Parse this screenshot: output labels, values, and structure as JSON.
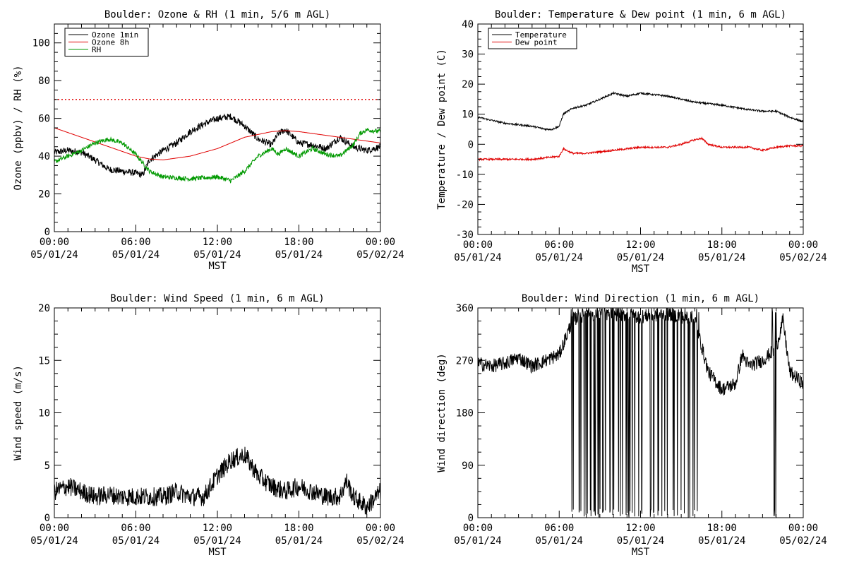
{
  "chart_data": [
    {
      "type": "line",
      "title": "Boulder: Ozone & RH (1 min, 5/6 m AGL)",
      "xlabel": "MST",
      "ylabel": "Ozone (ppbv) / RH (%)",
      "ylim": [
        0,
        110
      ],
      "yticks": [
        0,
        20,
        40,
        60,
        80,
        100
      ],
      "x_range_hours": [
        0,
        24
      ],
      "xticks": [
        {
          "hour": 0,
          "time": "00:00",
          "date": "05/01/24"
        },
        {
          "hour": 6,
          "time": "06:00",
          "date": "05/01/24"
        },
        {
          "hour": 12,
          "time": "12:00",
          "date": "05/01/24"
        },
        {
          "hour": 18,
          "time": "18:00",
          "date": "05/01/24"
        },
        {
          "hour": 24,
          "time": "00:00",
          "date": "05/02/24"
        }
      ],
      "grid": false,
      "legend_position": "top-left",
      "reference_lines": [
        {
          "y": 70,
          "color": "#e00000",
          "style": "dotted"
        }
      ],
      "series": [
        {
          "name": "Ozone 1min",
          "color": "#000000",
          "noise": 1.8,
          "x": [
            0,
            1,
            2,
            3,
            4,
            5,
            6,
            6.5,
            7,
            8,
            9,
            10,
            11,
            12,
            13,
            14,
            15,
            16,
            16.5,
            17,
            18,
            19,
            20,
            21,
            22,
            23,
            24
          ],
          "values": [
            42,
            43,
            42,
            38,
            33,
            32,
            31,
            30,
            38,
            43,
            47,
            53,
            57,
            60,
            61,
            56,
            49,
            46,
            52,
            54,
            47,
            46,
            44,
            50,
            45,
            43,
            45
          ]
        },
        {
          "name": "Ozone 8h",
          "color": "#e00000",
          "noise": 0,
          "x": [
            0,
            2,
            4,
            6,
            7,
            8,
            10,
            12,
            14,
            16,
            17,
            18,
            20,
            22,
            24
          ],
          "values": [
            55,
            50,
            45,
            40,
            38.5,
            38,
            40,
            44,
            50,
            53,
            53.5,
            53,
            51,
            49,
            47
          ]
        },
        {
          "name": "RH",
          "color": "#009900",
          "noise": 1.2,
          "x": [
            0,
            1,
            2,
            3,
            4,
            5,
            6,
            7,
            8,
            10,
            12,
            13,
            14,
            15,
            16,
            16.5,
            17,
            18,
            19,
            20,
            21,
            22,
            22.5,
            23,
            24
          ],
          "values": [
            37,
            40,
            43,
            47,
            49,
            47,
            41,
            32,
            29,
            28,
            29,
            27,
            32,
            40,
            44,
            41,
            44,
            40,
            44,
            41,
            40,
            46,
            52,
            54,
            53
          ]
        }
      ]
    },
    {
      "type": "line",
      "title": "Boulder: Temperature & Dew point (1 min, 6 m AGL)",
      "xlabel": "MST",
      "ylabel": "Temperature / Dew point (C)",
      "ylim": [
        -30,
        40
      ],
      "yticks": [
        -30,
        -20,
        -10,
        0,
        10,
        20,
        30,
        40
      ],
      "x_range_hours": [
        0,
        24
      ],
      "xticks": [
        {
          "hour": 0,
          "time": "00:00",
          "date": "05/01/24"
        },
        {
          "hour": 6,
          "time": "06:00",
          "date": "05/01/24"
        },
        {
          "hour": 12,
          "time": "12:00",
          "date": "05/01/24"
        },
        {
          "hour": 18,
          "time": "18:00",
          "date": "05/01/24"
        },
        {
          "hour": 24,
          "time": "00:00",
          "date": "05/02/24"
        }
      ],
      "grid": false,
      "legend_position": "top-left",
      "series": [
        {
          "name": "Temperature",
          "color": "#000000",
          "noise": 0.3,
          "x": [
            0,
            1,
            2,
            3,
            4,
            5,
            5.5,
            6,
            6.3,
            7,
            8,
            9,
            10,
            11,
            12,
            13,
            14,
            15,
            16,
            17,
            18,
            20,
            21,
            22,
            23,
            24
          ],
          "values": [
            9,
            8,
            7,
            6.5,
            6,
            5,
            5,
            6,
            10,
            12,
            13,
            15,
            17,
            16,
            17,
            16.5,
            16,
            15,
            14,
            13.5,
            13,
            11.5,
            11,
            11,
            9,
            7.5
          ]
        },
        {
          "name": "Dew point",
          "color": "#e00000",
          "noise": 0.3,
          "x": [
            0,
            2,
            4,
            6,
            6.3,
            7,
            8,
            10,
            12,
            14,
            15,
            16,
            16.5,
            17,
            18,
            20,
            21,
            22,
            23,
            24
          ],
          "values": [
            -5,
            -5,
            -5,
            -4,
            -1.5,
            -3,
            -3,
            -2,
            -1,
            -1,
            0,
            1.5,
            2,
            0,
            -1,
            -1,
            -2,
            -1,
            -0.5,
            -0.5
          ]
        }
      ]
    },
    {
      "type": "line",
      "title": "Boulder: Wind Speed (1 min, 6 m AGL)",
      "xlabel": "MST",
      "ylabel": "Wind speed (m/s)",
      "ylim": [
        0,
        20
      ],
      "yticks": [
        0,
        5,
        10,
        15,
        20
      ],
      "x_range_hours": [
        0,
        24
      ],
      "xticks": [
        {
          "hour": 0,
          "time": "00:00",
          "date": "05/01/24"
        },
        {
          "hour": 6,
          "time": "06:00",
          "date": "05/01/24"
        },
        {
          "hour": 12,
          "time": "12:00",
          "date": "05/01/24"
        },
        {
          "hour": 18,
          "time": "18:00",
          "date": "05/01/24"
        },
        {
          "hour": 24,
          "time": "00:00",
          "date": "05/02/24"
        }
      ],
      "grid": false,
      "series": [
        {
          "name": "",
          "color": "#000000",
          "noise": 0.9,
          "x": [
            0,
            1,
            2,
            3,
            4,
            5,
            6,
            7,
            8,
            9,
            10,
            11,
            12,
            13,
            14,
            15,
            16,
            17,
            18,
            19,
            20,
            21,
            21.5,
            22,
            23,
            24
          ],
          "values": [
            2.5,
            3,
            2.5,
            2,
            2.2,
            2,
            2,
            2,
            2,
            2.5,
            2,
            2,
            4,
            5.5,
            6,
            4,
            3,
            2.5,
            3,
            2.5,
            2,
            2,
            3.5,
            2,
            1,
            2.5
          ]
        }
      ]
    },
    {
      "type": "line",
      "title": "Boulder: Wind Direction (1 min, 6 m AGL)",
      "xlabel": "MST",
      "ylabel": "Wind direction (deg)",
      "ylim": [
        0,
        360
      ],
      "yticks": [
        0,
        90,
        180,
        270,
        360
      ],
      "x_range_hours": [
        0,
        24
      ],
      "xticks": [
        {
          "hour": 0,
          "time": "00:00",
          "date": "05/01/24"
        },
        {
          "hour": 6,
          "time": "06:00",
          "date": "05/01/24"
        },
        {
          "hour": 12,
          "time": "12:00",
          "date": "05/01/24"
        },
        {
          "hour": 18,
          "time": "18:00",
          "date": "05/01/24"
        },
        {
          "hour": 24,
          "time": "00:00",
          "date": "05/02/24"
        }
      ],
      "grid": false,
      "series": [
        {
          "name": "",
          "color": "#000000",
          "noise": 12,
          "x": [
            0,
            1,
            2,
            3,
            4,
            5,
            6,
            7,
            8,
            10,
            12,
            14,
            16,
            17,
            18,
            19,
            19.5,
            20,
            21,
            22,
            22.5,
            23,
            24
          ],
          "values": [
            265,
            260,
            265,
            275,
            260,
            270,
            280,
            340,
            350,
            350,
            345,
            350,
            340,
            250,
            220,
            230,
            280,
            260,
            270,
            290,
            340,
            250,
            230
          ]
        }
      ],
      "wraparound_intervals_hours": [
        [
          6.7,
          16.3
        ],
        [
          21.7,
          22.0
        ]
      ]
    }
  ]
}
